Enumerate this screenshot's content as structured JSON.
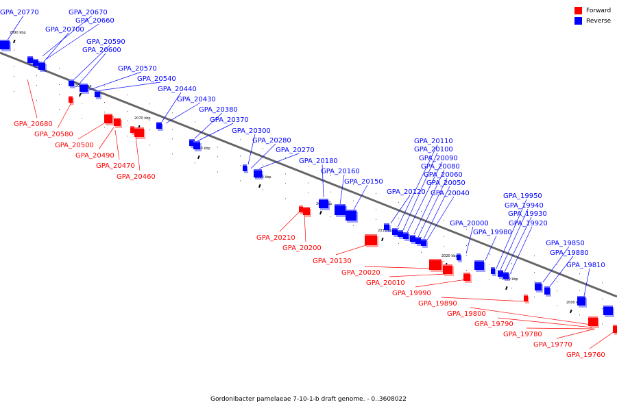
{
  "legend": {
    "forward_label": "Forward",
    "reverse_label": "Reverse",
    "forward_color": "#ff0000",
    "reverse_color": "#0000ff"
  },
  "caption": "Gordonibacter pamelaeae 7-10-1-b draft genome. - 0..3608022",
  "kbp_markers": [
    "2090 kbp",
    "2080 kbp",
    "2070 kbp",
    "2060 kbp",
    "2050 kbp",
    "2040 kbp",
    "2030 kbp",
    "2020 kbp",
    "2010 kbp",
    "2000 kbp"
  ],
  "forward_genes": [
    "GPA_20680",
    "GPA_20580",
    "GPA_20500",
    "GPA_20490",
    "GPA_20470",
    "GPA_20460",
    "GPA_20210",
    "GPA_20200",
    "GPA_20130",
    "GPA_20020",
    "GPA_20010",
    "GPA_19990",
    "GPA_19890",
    "GPA_19800",
    "GPA_19790",
    "GPA_19780",
    "GPA_19770",
    "GPA_19760"
  ],
  "reverse_genes": [
    "GPA_20770",
    "GPA_20670",
    "GPA_20660",
    "GPA_20700",
    "GPA_20590",
    "GPA_20600",
    "GPA_20570",
    "GPA_20540",
    "GPA_20440",
    "GPA_20430",
    "GPA_20380",
    "GPA_20370",
    "GPA_20300",
    "GPA_20280",
    "GPA_20270",
    "GPA_20180",
    "GPA_20160",
    "GPA_20150",
    "GPA_20120",
    "GPA_20110",
    "GPA_20100",
    "GPA_20090",
    "GPA_20080",
    "GPA_20060",
    "GPA_20050",
    "GPA_20040",
    "GPA_20000",
    "GPA_19980",
    "GPA_19950",
    "GPA_19940",
    "GPA_19930",
    "GPA_19920",
    "GPA_19850",
    "GPA_19880",
    "GPA_19810"
  ]
}
